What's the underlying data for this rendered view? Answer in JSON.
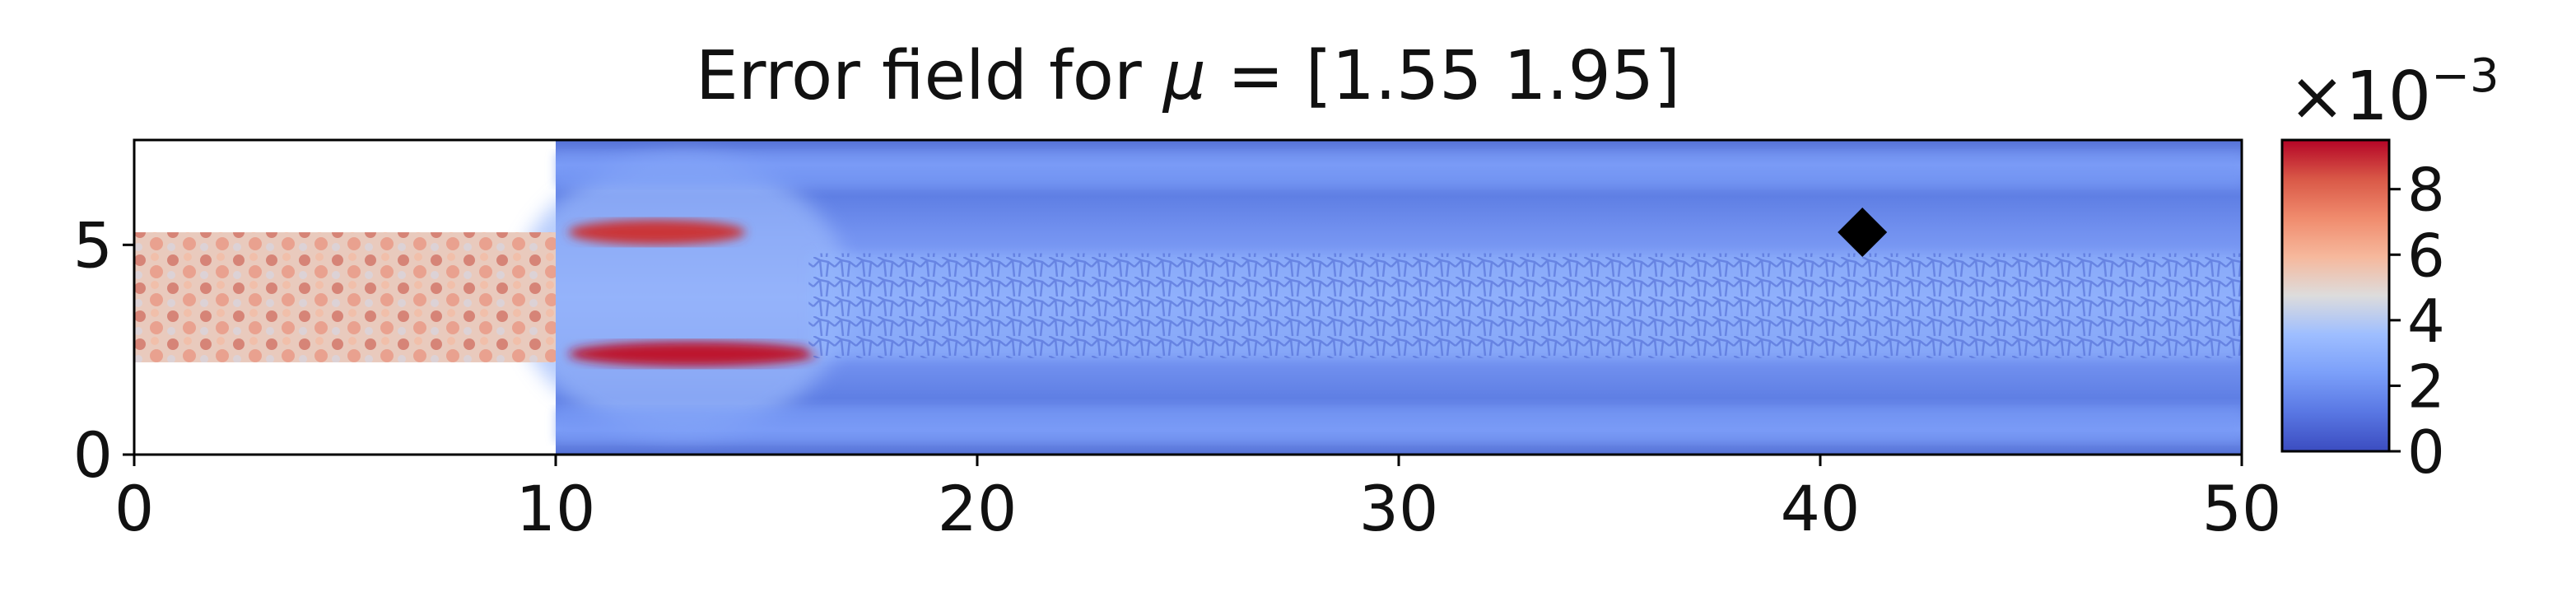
{
  "chart_data": {
    "type": "heatmap",
    "title": "Error field for μ = [1.55 1.95]",
    "title_prefix": "Error field for ",
    "title_mu": "μ",
    "title_suffix": " = [1.55 1.95]",
    "xlabel": "",
    "ylabel": "",
    "xlim": [
      0,
      50
    ],
    "ylim": [
      0,
      7.5
    ],
    "xticks": [
      0,
      10,
      20,
      30,
      40,
      50
    ],
    "yticks": [
      0,
      5
    ],
    "colormap": "coolwarm",
    "colorbar": {
      "range": [
        0,
        9.5
      ],
      "ticks": [
        0,
        2,
        4,
        6,
        8
      ],
      "multiplier_base": "×10",
      "multiplier_exp": "−3"
    },
    "domain": {
      "inlet_channel": {
        "x": [
          0,
          10
        ],
        "y": [
          2.2,
          5.3
        ]
      },
      "main_channel": {
        "x": [
          10,
          50
        ],
        "y": [
          0,
          7.5
        ]
      }
    },
    "error_regions": [
      {
        "region": "inlet",
        "x": [
          0,
          10
        ],
        "y": [
          2.2,
          5.3
        ],
        "value": 6.5
      },
      {
        "region": "upper-jet",
        "x": [
          10.3,
          14.5
        ],
        "y": [
          5.0,
          5.6
        ],
        "value": 8.8
      },
      {
        "region": "lower-jet",
        "x": [
          10.3,
          16.2
        ],
        "y": [
          2.1,
          2.7
        ],
        "value": 9.2
      },
      {
        "region": "wake-core",
        "x": [
          16,
          50
        ],
        "y": [
          2.3,
          4.8
        ],
        "value": 3.2
      },
      {
        "region": "boundary-bands",
        "x": [
          10,
          50
        ],
        "y": [
          0.3,
          7.2
        ],
        "value": 2.2
      }
    ],
    "marker": {
      "x": 41,
      "y": 5.3,
      "shape": "diamond",
      "color": "#000000"
    },
    "grid": false,
    "legend": "none"
  }
}
